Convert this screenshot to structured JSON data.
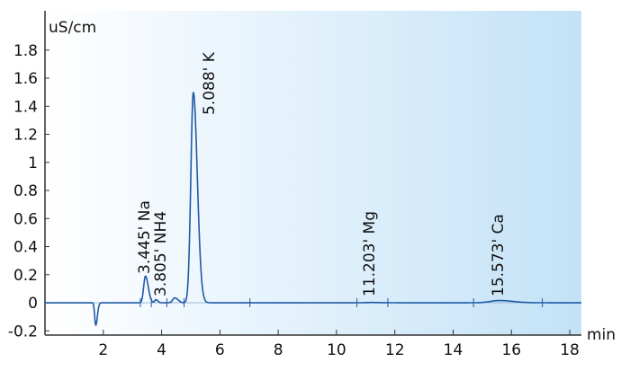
{
  "chart_data": {
    "type": "line",
    "title": "",
    "xlabel": "min",
    "ylabel": "uS/cm",
    "xlim": [
      0,
      18.4
    ],
    "ylim": [
      -0.23,
      2.08
    ],
    "x_ticks": [
      2,
      4,
      6,
      8,
      10,
      12,
      14,
      16,
      18
    ],
    "x_tick_labels": [
      "2",
      "4",
      "6",
      "8",
      "10",
      "12",
      "14",
      "16",
      "18"
    ],
    "y_ticks": [
      -0.2,
      0,
      0.2,
      0.4,
      0.6,
      0.8,
      1,
      1.2,
      1.4,
      1.6,
      1.8
    ],
    "y_tick_labels": [
      "-0.2",
      "0",
      "0.2",
      "0.4",
      "0.6",
      "0.8",
      "1",
      "1.2",
      "1.4",
      "1.6",
      "1.8"
    ],
    "grid": false,
    "line_color": "#1f5aa6",
    "background_gradient": [
      "#ffffff",
      "#c3e2f7"
    ],
    "peaks": [
      {
        "time": 1.74,
        "height": -0.16,
        "width": 0.035,
        "label": ""
      },
      {
        "time": 3.445,
        "height": 0.19,
        "width": 0.06,
        "label": "3.445' Na"
      },
      {
        "time": 3.805,
        "height": 0.022,
        "width": 0.04,
        "label": "3.805' NH4"
      },
      {
        "time": 4.45,
        "height": 0.035,
        "width": 0.07,
        "label": ""
      },
      {
        "time": 5.088,
        "height": 1.5,
        "width": 0.085,
        "label": "5.088' K"
      },
      {
        "time": 11.203,
        "height": 0.002,
        "width": 0.2,
        "label": "11.203' Mg"
      },
      {
        "time": 15.573,
        "height": 0.016,
        "width": 0.3,
        "label": "15.573' Ca"
      }
    ],
    "integration_marks": [
      3.27,
      3.65,
      4.18,
      4.77,
      7.03,
      10.7,
      11.76,
      14.7,
      17.06
    ]
  }
}
